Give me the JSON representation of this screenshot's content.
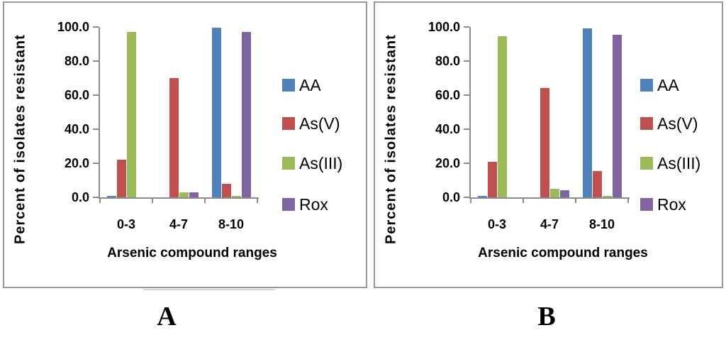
{
  "figure": {
    "captions": [
      {
        "label": "A"
      },
      {
        "label": "B"
      }
    ]
  },
  "colors": {
    "axis": "#8C8C8C",
    "panel_border": "#969696",
    "series_blue": "#4F81BD",
    "series_red": "#C0504D",
    "series_green": "#9BBB59",
    "series_purple": "#8064A2"
  },
  "chart_data": [
    {
      "type": "bar",
      "panel_caption": "A",
      "categories": [
        "0-3",
        "4-7",
        "8-10"
      ],
      "series": [
        {
          "name": "AA",
          "color": "#4F81BD",
          "values": [
            1,
            0,
            99.5
          ]
        },
        {
          "name": "As(V)",
          "color": "#C0504D",
          "values": [
            22,
            70,
            8
          ]
        },
        {
          "name": "As(III)",
          "color": "#9BBB59",
          "values": [
            97,
            3,
            1
          ]
        },
        {
          "name": "Rox",
          "color": "#8064A2",
          "values": [
            0,
            3,
            97
          ]
        }
      ],
      "xlabel": "Arsenic compound ranges",
      "ylabel": "Percent of isolates resistant",
      "ylim": [
        0,
        100
      ],
      "ytick_labels": [
        "0.0",
        "20.0",
        "40.0",
        "60.0",
        "80.0",
        "100.0"
      ],
      "legend_position": "right",
      "grid": false
    },
    {
      "type": "bar",
      "panel_caption": "B",
      "categories": [
        "0-3",
        "4-7",
        "8-10"
      ],
      "series": [
        {
          "name": "AA",
          "color": "#4F81BD",
          "values": [
            1,
            0,
            99
          ]
        },
        {
          "name": "As(V)",
          "color": "#C0504D",
          "values": [
            21,
            64,
            15.5
          ]
        },
        {
          "name": "As(III)",
          "color": "#9BBB59",
          "values": [
            94.5,
            5,
            1
          ]
        },
        {
          "name": "Rox",
          "color": "#8064A2",
          "values": [
            0,
            4,
            95.5
          ]
        }
      ],
      "xlabel": "Arsenic compound ranges",
      "ylabel": "Percent of isolates resistant",
      "ylim": [
        0,
        100
      ],
      "ytick_labels": [
        "0.0",
        "20.0",
        "40.0",
        "60.0",
        "80.0",
        "100.0"
      ],
      "legend_position": "right",
      "grid": false
    }
  ]
}
